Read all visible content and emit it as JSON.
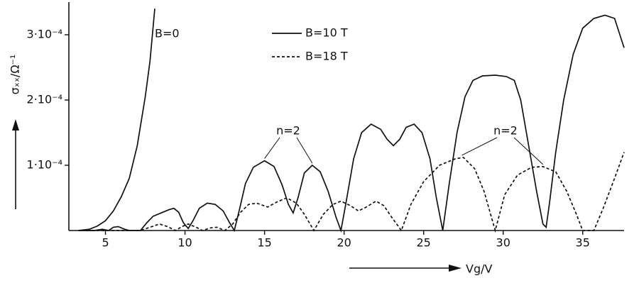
{
  "chart_data": {
    "type": "line",
    "x_label": "Vg/V",
    "y_label": "σₓₓ/Ω⁻¹",
    "xlim": [
      2.7,
      37.6
    ],
    "ylim": [
      0,
      0.00035
    ],
    "xticks": [
      5,
      10,
      15,
      20,
      25,
      30,
      35
    ],
    "yticks": [
      {
        "value": 0.0001,
        "label": "1·10⁻⁴"
      },
      {
        "value": 0.0002,
        "label": "2·10⁻⁴"
      },
      {
        "value": 0.0003,
        "label": "3·10⁻⁴"
      }
    ],
    "color": "#111111",
    "annotations": [
      "n=2",
      "n=2"
    ],
    "series": [
      {
        "name": "B=0",
        "style": "solid",
        "x": [
          3.3,
          4,
          4.5,
          5,
          5.5,
          6,
          6.5,
          7,
          7.5,
          7.8,
          8.1
        ],
        "values": [
          0,
          2e-06,
          7e-06,
          1.5e-05,
          3e-05,
          5.2e-05,
          8e-05,
          0.00013,
          0.000205,
          0.00026,
          0.00034
        ]
      },
      {
        "name": "B=10 T",
        "style": "solid",
        "x": [
          3.3,
          4.3,
          4.8,
          5.2,
          5.5,
          5.8,
          6.2,
          6.5,
          7.2,
          7.6,
          8.0,
          8.5,
          9.0,
          9.3,
          9.6,
          9.9,
          10.2,
          10.5,
          10.9,
          11.4,
          11.9,
          12.4,
          12.8,
          13.1,
          13.4,
          13.8,
          14.3,
          15.0,
          15.6,
          16.1,
          16.5,
          16.8,
          17.1,
          17.5,
          18.0,
          18.5,
          19.0,
          19.5,
          19.8,
          20.1,
          20.6,
          21.1,
          21.7,
          22.3,
          22.7,
          23.1,
          23.5,
          23.9,
          24.4,
          24.9,
          25.4,
          25.8,
          26.2,
          26.6,
          27.1,
          27.6,
          28.1,
          28.7,
          29.5,
          30.2,
          30.7,
          31.1,
          31.6,
          32.1,
          32.5,
          32.7,
          32.9,
          33.3,
          33.8,
          34.4,
          35.0,
          35.7,
          36.4,
          37.0,
          37.6
        ],
        "values": [
          0,
          0,
          2e-06,
          0,
          5e-06,
          6e-06,
          2e-06,
          0,
          0,
          1.2e-05,
          2.2e-05,
          2.7e-05,
          3.2e-05,
          3.4e-05,
          2.8e-05,
          1.2e-05,
          3e-06,
          1.5e-05,
          3.4e-05,
          4.2e-05,
          4e-05,
          3e-05,
          1.2e-05,
          0,
          3e-05,
          7.2e-05,
          9.7e-05,
          0.000107,
          9.8e-05,
          7e-05,
          4e-05,
          2.7e-05,
          5e-05,
          8.8e-05,
          0.0001,
          9e-05,
          6e-05,
          2e-05,
          0,
          4e-05,
          0.00011,
          0.00015,
          0.000163,
          0.000155,
          0.00014,
          0.00013,
          0.00014,
          0.000158,
          0.000163,
          0.00015,
          0.00011,
          5e-05,
          0,
          7e-05,
          0.00015,
          0.000205,
          0.00023,
          0.000237,
          0.000238,
          0.000236,
          0.00023,
          0.0002,
          0.00013,
          6e-05,
          1e-05,
          5e-06,
          4e-05,
          0.00012,
          0.0002,
          0.00027,
          0.00031,
          0.000325,
          0.00033,
          0.000325,
          0.00028
        ]
      },
      {
        "name": "B=18 T",
        "style": "dashed",
        "x": [
          3.5,
          7.2,
          7.8,
          8.4,
          8.9,
          9.4,
          9.8,
          10.2,
          10.7,
          11.1,
          11.6,
          12.0,
          12.5,
          13.0,
          13.5,
          14.0,
          14.5,
          15.2,
          15.8,
          16.4,
          17.0,
          17.5,
          18.1,
          18.7,
          19.3,
          19.8,
          20.4,
          20.9,
          21.4,
          22.0,
          22.5,
          23.0,
          23.6,
          24.2,
          25.0,
          26.0,
          27.0,
          27.5,
          28.2,
          28.8,
          29.5,
          30.1,
          30.9,
          31.8,
          32.5,
          33.3,
          34.0,
          34.6,
          35.0,
          35.7,
          36.3,
          37.0,
          37.6
        ],
        "values": [
          0,
          0,
          5e-06,
          1e-05,
          6e-06,
          0,
          6e-06,
          1e-05,
          5e-06,
          0,
          4e-06,
          5e-06,
          0,
          1e-05,
          2.8e-05,
          4e-05,
          4.2e-05,
          3.6e-05,
          4.4e-05,
          5e-05,
          4.2e-05,
          2.5e-05,
          0,
          2.5e-05,
          4e-05,
          4.5e-05,
          3.8e-05,
          3e-05,
          3.6e-05,
          4.5e-05,
          3.8e-05,
          2e-05,
          0,
          4e-05,
          7.5e-05,
          0.0001,
          0.00011,
          0.000112,
          9.5e-05,
          6e-05,
          0,
          5.5e-05,
          8.5e-05,
          9.7e-05,
          9.8e-05,
          9e-05,
          6e-05,
          2.5e-05,
          0,
          0,
          3.5e-05,
          8e-05,
          0.00012
        ]
      }
    ]
  }
}
